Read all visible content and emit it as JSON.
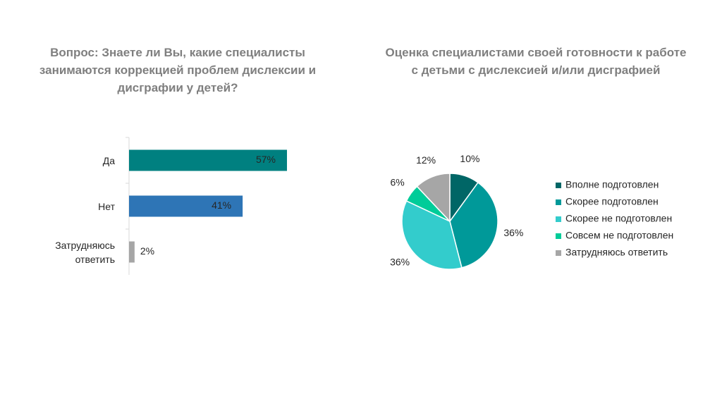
{
  "chart_data": [
    {
      "type": "hbar",
      "title": "Вопрос: Знаете ли Вы, какие специалисты занимаются коррекцией проблем дислексии и дисграфии у детей?",
      "categories": [
        "Да",
        "Нет",
        "Затрудняюсь ответить"
      ],
      "values": [
        57,
        41,
        2
      ],
      "value_labels": [
        "57%",
        "41%",
        "2%"
      ],
      "colors": [
        "#008080",
        "#2e75b6",
        "#a6a6a6"
      ],
      "xlim": [
        0,
        100
      ]
    },
    {
      "type": "pie",
      "title": "Оценка специалистами своей готовности к работе с детьми с дислексией и/или дисграфией",
      "categories": [
        "Вполне подготовлен",
        "Скорее подготовлен",
        "Скорее не подготовлен",
        "Совсем не подготовлен",
        "Затрудняюсь ответить"
      ],
      "values": [
        10,
        36,
        36,
        6,
        12
      ],
      "value_labels": [
        "10%",
        "36%",
        "36%",
        "6%",
        "12%"
      ],
      "colors": [
        "#006666",
        "#009999",
        "#33cccc",
        "#00cc99",
        "#a6a6a6"
      ],
      "legend": "right"
    }
  ]
}
